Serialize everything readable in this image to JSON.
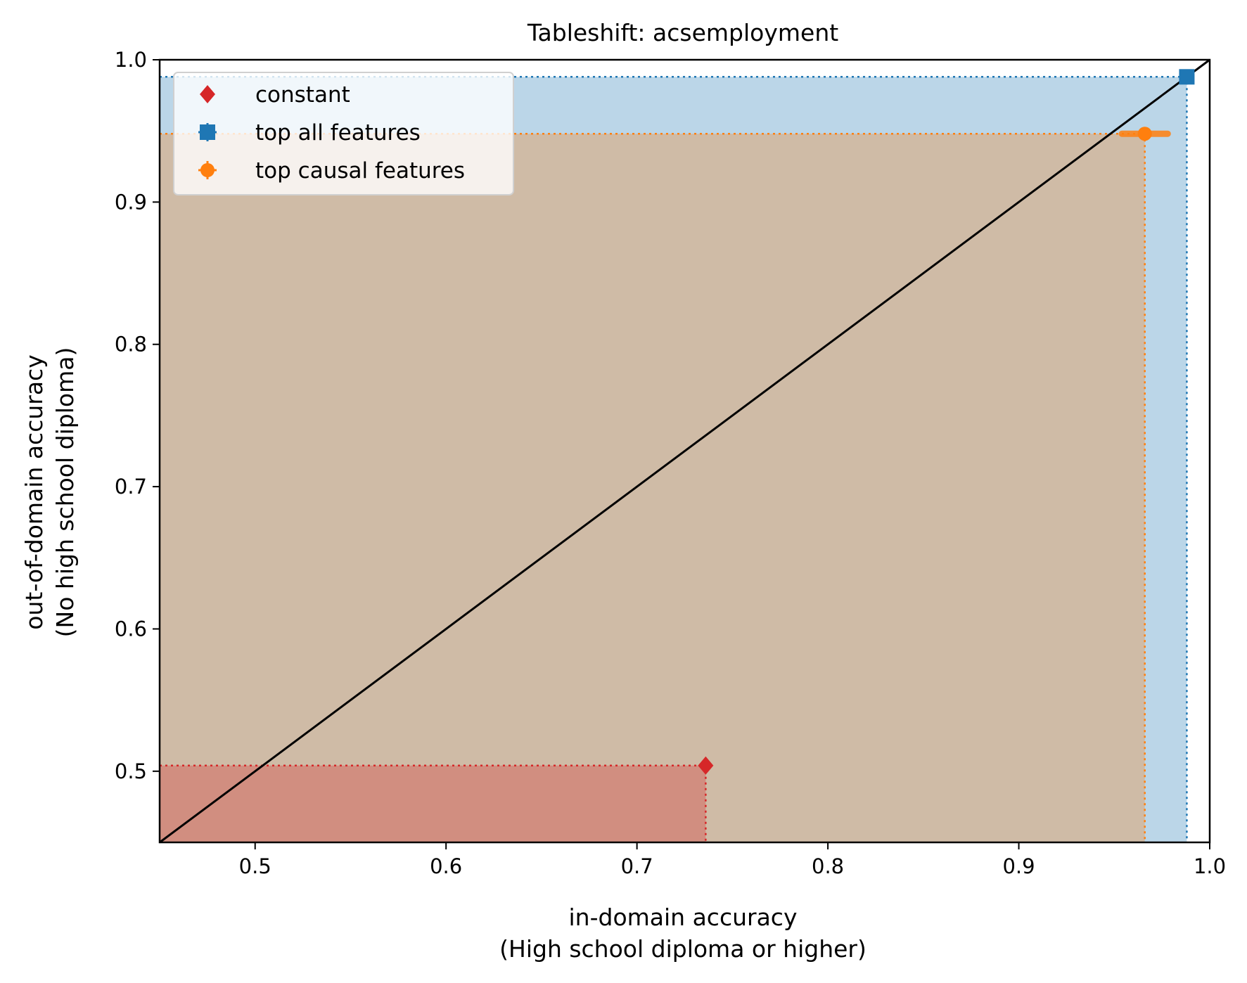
{
  "chart_data": {
    "type": "scatter",
    "title": "Tableshift: acsemployment",
    "xlabel": [
      "in-domain accuracy",
      "(High school diploma or higher)"
    ],
    "ylabel": [
      "out-of-domain accuracy",
      "(No high school diploma)"
    ],
    "xlim": [
      0.45,
      1.0
    ],
    "ylim": [
      0.45,
      1.0
    ],
    "xticks": [
      0.5,
      0.6,
      0.7,
      0.8,
      0.9,
      1.0
    ],
    "yticks": [
      0.5,
      0.6,
      0.7,
      0.8,
      0.9,
      1.0
    ],
    "xtick_labels": [
      "0.5",
      "0.6",
      "0.7",
      "0.8",
      "0.9",
      "1.0"
    ],
    "ytick_labels": [
      "0.5",
      "0.6",
      "0.7",
      "0.8",
      "0.9",
      "1.0"
    ],
    "diagonal": true,
    "grid": false,
    "legend_position": "top-left",
    "series": [
      {
        "name": "top all features",
        "x": 0.988,
        "y": 0.988,
        "x_err": 0.001,
        "y_err": 0.001,
        "color": "#1f77b4",
        "marker": "square"
      },
      {
        "name": "top causal features",
        "x": 0.966,
        "y": 0.948,
        "x_err": 0.012,
        "y_err": 0.001,
        "color": "#ff7f0e",
        "marker": "circle"
      },
      {
        "name": "constant",
        "x": 0.736,
        "y": 0.504,
        "color": "#d62728",
        "marker": "diamond"
      }
    ],
    "legend_order": [
      "constant",
      "top all features",
      "top causal features"
    ]
  }
}
